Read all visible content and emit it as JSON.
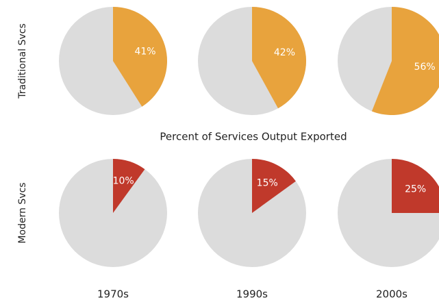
{
  "chart_data": {
    "type": "pie",
    "title": "Percent of Services Output Exported",
    "categories": [
      "1970s",
      "1990s",
      "2000s"
    ],
    "rest_color": "#dcdcdc",
    "series": [
      {
        "name": "Traditional Svcs",
        "color": "#e8a33d",
        "values": [
          41,
          42,
          56
        ],
        "value_labels": [
          "41%",
          "42%",
          "56%"
        ]
      },
      {
        "name": "Modern Svcs",
        "color": "#c0392b",
        "values": [
          10,
          15,
          25
        ],
        "value_labels": [
          "10%",
          "15%",
          "25%"
        ]
      }
    ]
  }
}
